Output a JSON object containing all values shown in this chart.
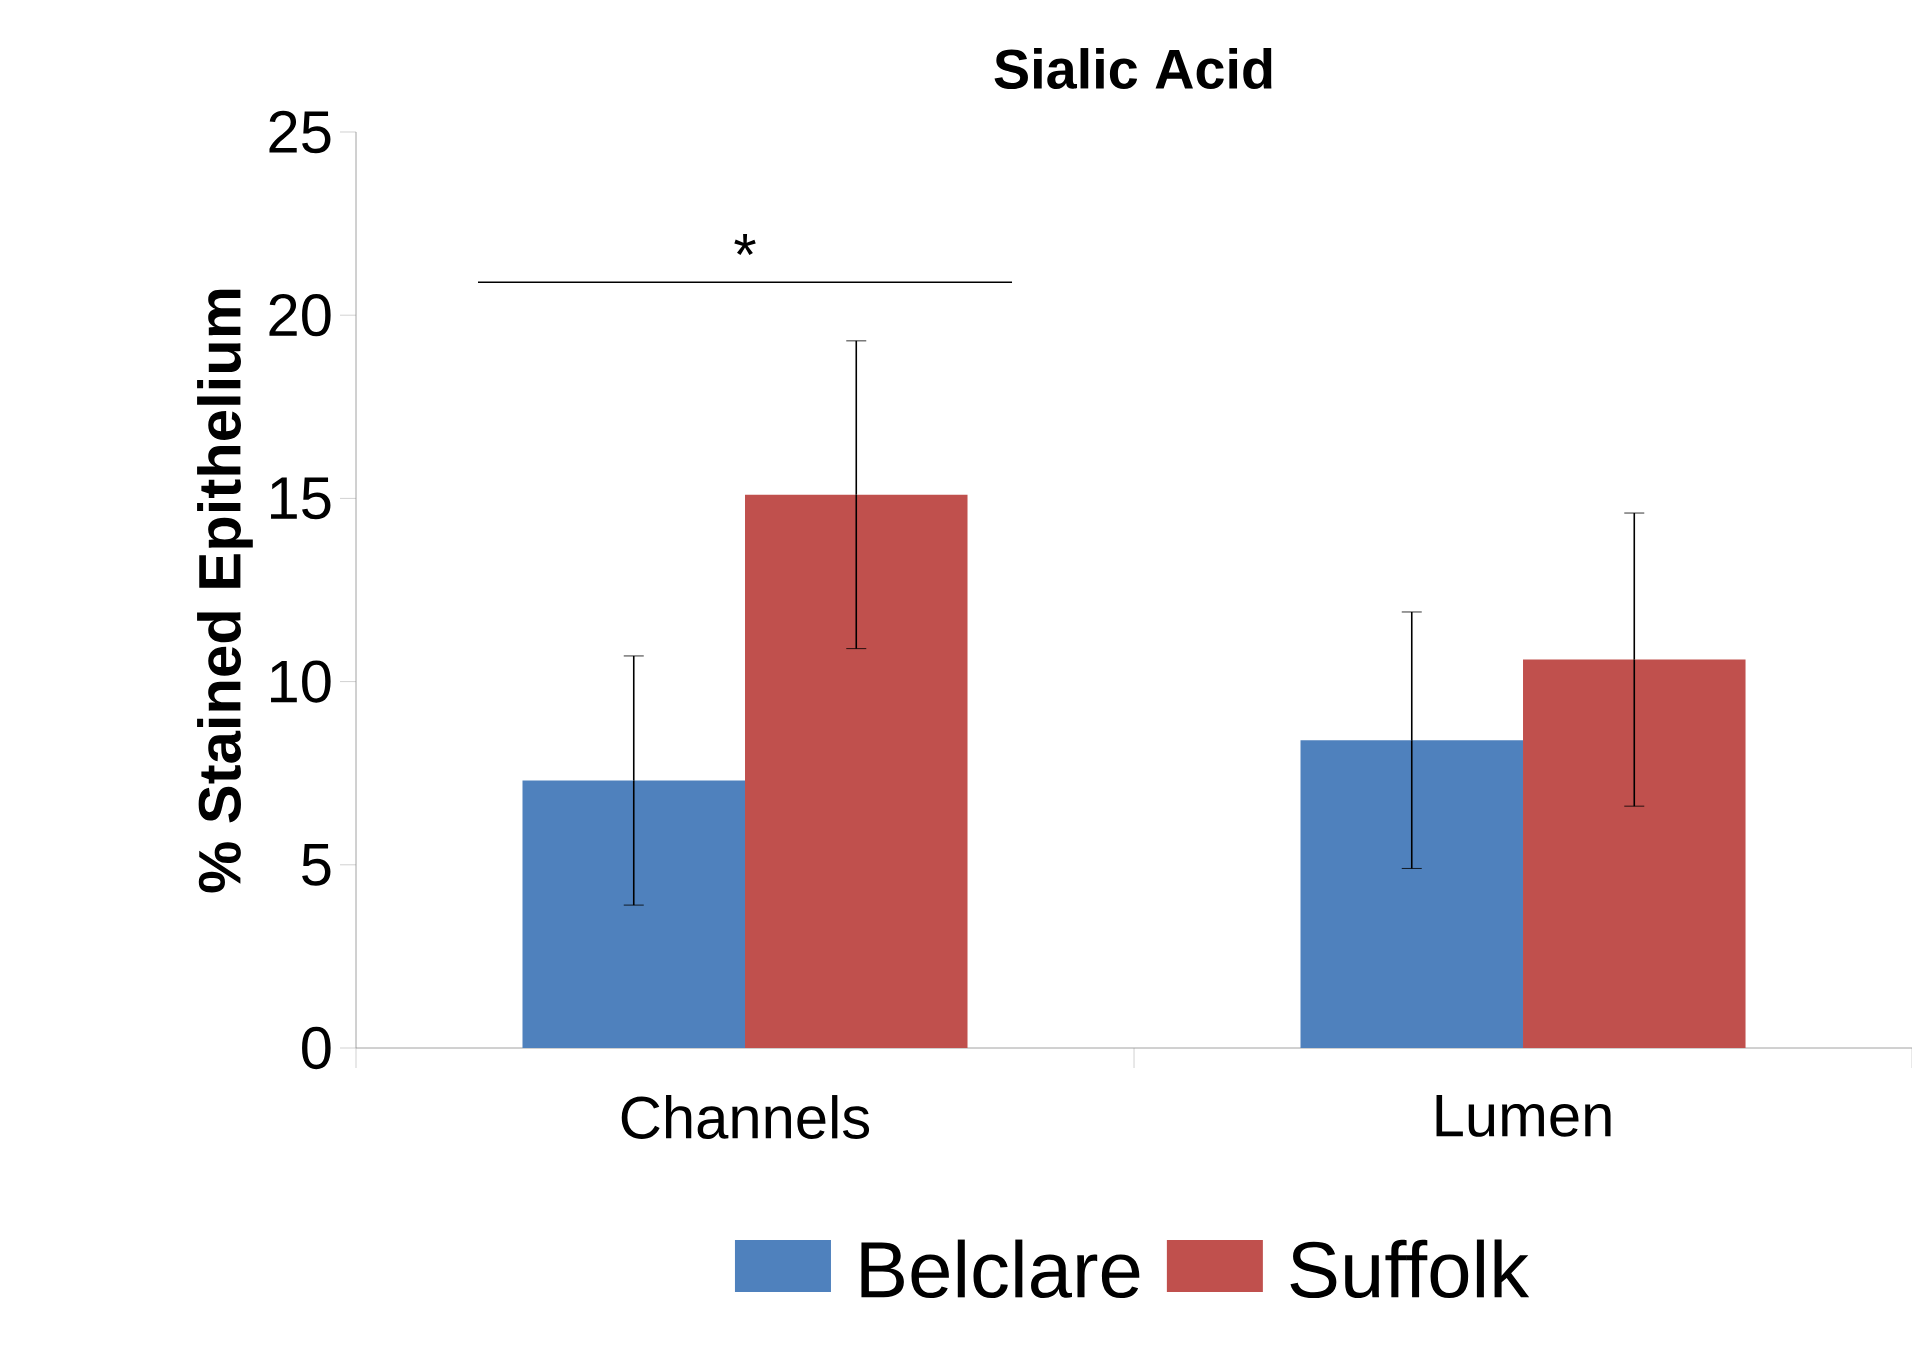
{
  "chart_data": {
    "type": "bar",
    "title": "Sialic Acid",
    "ylabel": "% Stained Epithelium",
    "categories": [
      "Channels",
      "Lumen"
    ],
    "series": [
      {
        "name": "Belclare",
        "color": "#4f81bd",
        "values": [
          7.3,
          8.4
        ],
        "errors": [
          3.4,
          3.5
        ]
      },
      {
        "name": "Suffolk",
        "color": "#c0504d",
        "values": [
          15.1,
          10.6
        ],
        "errors": [
          4.2,
          4.0
        ]
      }
    ],
    "ylim": [
      0,
      25
    ],
    "yticks": [
      0,
      5,
      10,
      15,
      20,
      25
    ],
    "grid": false,
    "legend": "bottom",
    "annotations": [
      "*"
    ]
  }
}
